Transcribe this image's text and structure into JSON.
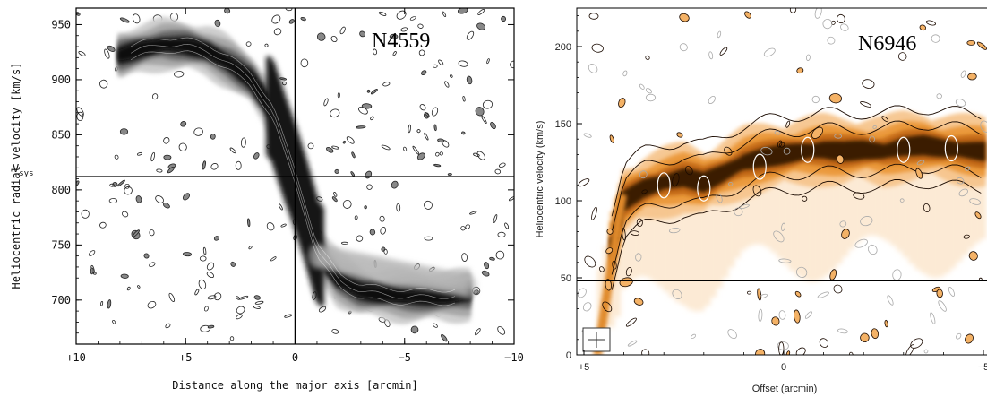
{
  "chart_data": [
    {
      "type": "heatmap",
      "title": "N4559",
      "xlabel": "Distance along the major axis [arcmin]",
      "ylabel": "Heliocentric radial velocity [km/s]",
      "xlim": [
        10,
        -10
      ],
      "ylim": [
        660,
        965
      ],
      "xticks": [
        10,
        5,
        0,
        -5,
        -10
      ],
      "xtick_labels": [
        "+10",
        "+5",
        "0",
        "−5",
        "−10"
      ],
      "yticks": [
        700,
        750,
        800,
        850,
        900,
        950
      ],
      "ytick_labels": [
        "700",
        "750",
        "800",
        "850",
        "900",
        "950"
      ],
      "vsys_label": "V",
      "vsys_subscript": "sys",
      "vsys": 812,
      "center_offset": 0,
      "colormap": "grayscale",
      "rotation_curve": {
        "x": [
          8,
          7,
          6,
          5,
          4,
          3,
          2,
          1,
          0.5,
          0,
          -0.5,
          -1,
          -2,
          -3,
          -4,
          -5,
          -6,
          -7,
          -8
        ],
        "y": [
          922,
          928,
          932,
          931,
          926,
          915,
          900,
          870,
          840,
          812,
          780,
          745,
          718,
          708,
          705,
          703,
          703,
          703,
          705
        ]
      }
    },
    {
      "type": "heatmap",
      "title": "N6946",
      "xlabel": "Offset (arcmin)",
      "ylabel": "Heliocentric velocity (km/s)",
      "xlim": [
        5,
        -5
      ],
      "ylim": [
        0,
        225
      ],
      "xticks": [
        5,
        0,
        -5
      ],
      "xtick_labels": [
        "+5",
        "0",
        "−5"
      ],
      "yticks": [
        0,
        50,
        100,
        150,
        200
      ],
      "ytick_labels": [
        "0",
        "50",
        "100",
        "150",
        "200"
      ],
      "vsys": 48,
      "colormap": "white-orange-black",
      "rotation_curve": {
        "x": [
          4.8,
          4.3,
          4,
          3.5,
          3,
          2.5,
          2,
          1.5,
          1,
          0.5,
          0,
          -0.5,
          -1,
          -1.5,
          -2,
          -2.5,
          -3,
          -3.5,
          -4,
          -4.5,
          -5
        ],
        "y": [
          20,
          70,
          100,
          108,
          112,
          115,
          112,
          118,
          125,
          128,
          130,
          132,
          133,
          132,
          133,
          132,
          135,
          136,
          134,
          133,
          132
        ]
      }
    }
  ]
}
